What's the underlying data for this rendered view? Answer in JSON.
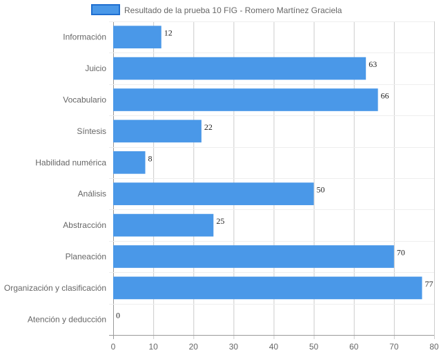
{
  "chart_data": {
    "type": "bar",
    "orientation": "horizontal",
    "categories": [
      "Información",
      "Juicio",
      "Vocabulario",
      "Síntesis",
      "Habilidad numérica",
      "Análisis",
      "Abstracción",
      "Planeación",
      "Organización y clasificación",
      "Atención y deducción"
    ],
    "series": [
      {
        "name": "Resultado de la prueba 10 FIG - Romero Martínez Graciela",
        "values": [
          12,
          63,
          66,
          22,
          8,
          50,
          25,
          70,
          77,
          0
        ]
      }
    ],
    "xlim": [
      0,
      80
    ],
    "x_ticks": [
      "0",
      "10",
      "20",
      "30",
      "40",
      "50",
      "60",
      "70",
      "80"
    ],
    "grid": true,
    "legend_position": "top",
    "data_labels": [
      "12",
      "63",
      "66",
      "22",
      "8",
      "50",
      "25",
      "70",
      "77",
      "0"
    ],
    "colors": {
      "bar_fill": "#4a98e8",
      "legend_border": "#1f6fd0",
      "grid": "#cccccc"
    }
  }
}
